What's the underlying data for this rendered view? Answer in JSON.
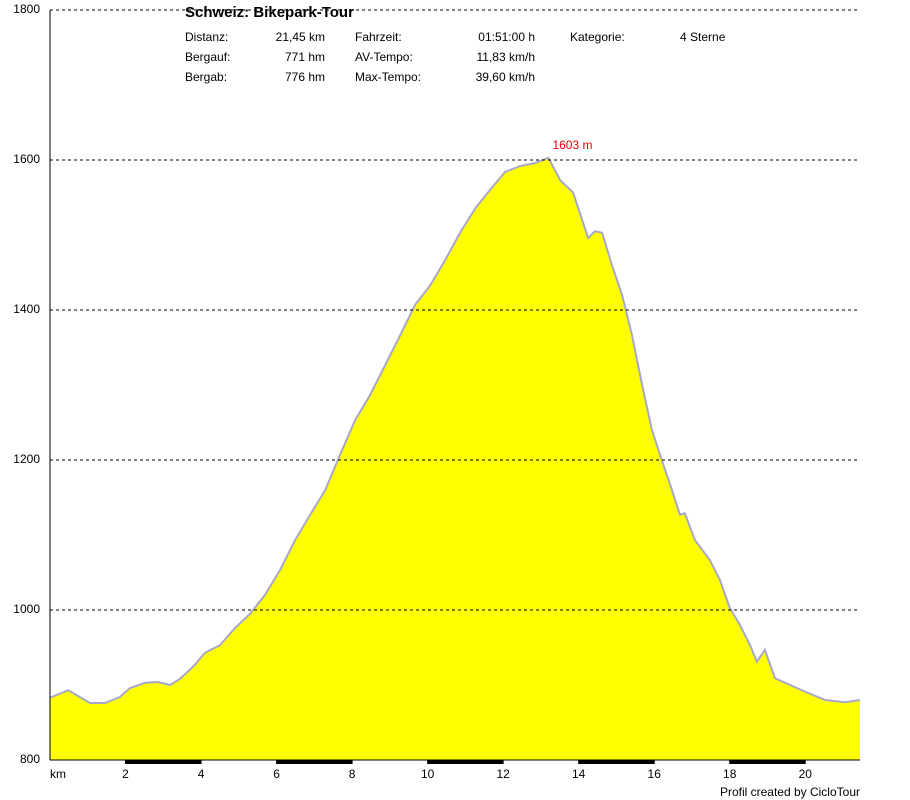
{
  "chart_data": {
    "type": "area",
    "title": "Schweiz: Bikepark-Tour",
    "info": [
      [
        {
          "label": "Distanz:",
          "value": "21,45 km"
        },
        {
          "label": "Bergauf:",
          "value": "771 hm"
        },
        {
          "label": "Bergab:",
          "value": "776 hm"
        }
      ],
      [
        {
          "label": "Fahrzeit:",
          "value": "01:51:00 h"
        },
        {
          "label": "AV-Tempo:",
          "value": "11,83 km/h"
        },
        {
          "label": "Max-Tempo:",
          "value": "39,60 km/h"
        }
      ],
      [
        {
          "label": "Kategorie:",
          "value": "4 Sterne"
        }
      ]
    ],
    "annotation": "1603 m",
    "x_label": "km",
    "footer": "Profil created by CicloTour",
    "color": "#ffff00",
    "line_color": "#a8a8c8",
    "x": [
      0,
      0.48,
      1.06,
      1.46,
      1.85,
      2.12,
      2.52,
      2.86,
      3.18,
      3.44,
      3.84,
      4.1,
      4.5,
      4.9,
      5.3,
      5.69,
      6.09,
      6.49,
      6.89,
      7.29,
      7.68,
      8.08,
      8.48,
      8.88,
      9.28,
      9.67,
      10.07,
      10.47,
      10.87,
      11.27,
      11.65,
      12.05,
      12.45,
      12.85,
      13.2,
      13.51,
      13.85,
      14.25,
      14.43,
      14.62,
      14.88,
      15.15,
      15.41,
      15.68,
      15.94,
      16.2,
      16.47,
      16.68,
      16.81,
      17.08,
      17.47,
      17.74,
      18.0,
      18.27,
      18.54,
      18.72,
      18.93,
      19.2,
      19.6,
      20.0,
      20.53,
      21.06,
      21.45
    ],
    "values": [
      883,
      893,
      876,
      876,
      884,
      896,
      903,
      904,
      900,
      908,
      927,
      943,
      953,
      976,
      995,
      1020,
      1053,
      1093,
      1127,
      1160,
      1207,
      1253,
      1287,
      1327,
      1367,
      1407,
      1433,
      1467,
      1504,
      1536,
      1560,
      1584,
      1592,
      1596,
      1603,
      1573,
      1557,
      1496,
      1505,
      1503,
      1460,
      1420,
      1367,
      1300,
      1240,
      1200,
      1160,
      1127,
      1129,
      1093,
      1067,
      1040,
      1003,
      980,
      953,
      931,
      947,
      909,
      900,
      891,
      880,
      877,
      880
    ],
    "xlim": [
      0,
      21.45
    ],
    "xticks": [
      2,
      4,
      6,
      8,
      10,
      12,
      14,
      16,
      18,
      20
    ],
    "ylim": [
      800,
      1800
    ],
    "yticks": [
      800,
      1000,
      1200,
      1400,
      1600,
      1800
    ],
    "grid": true
  }
}
